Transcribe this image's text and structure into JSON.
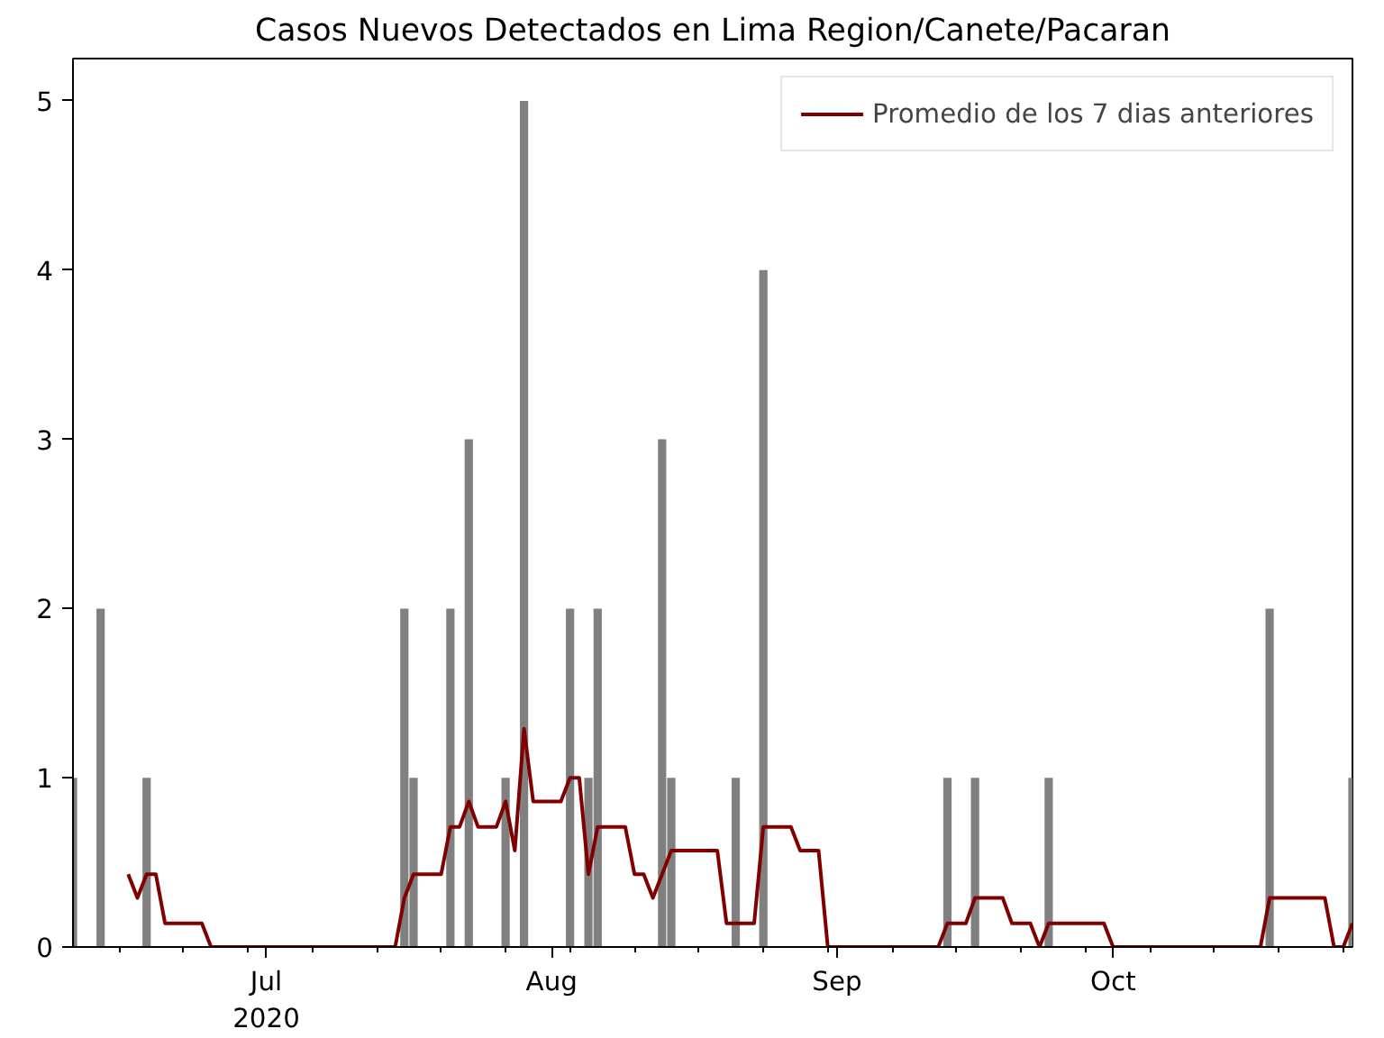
{
  "chart_data": {
    "type": "bar",
    "title": "Casos Nuevos Detectados en Lima Region/Canete/Pacaran",
    "x": [
      "2020-06-10",
      "2020-06-13",
      "2020-06-18",
      "2020-07-16",
      "2020-07-17",
      "2020-07-21",
      "2020-07-23",
      "2020-07-27",
      "2020-07-29",
      "2020-08-03",
      "2020-08-05",
      "2020-08-06",
      "2020-08-13",
      "2020-08-14",
      "2020-08-21",
      "2020-08-24",
      "2020-09-13",
      "2020-09-16",
      "2020-09-24",
      "2020-10-18",
      "2020-10-27"
    ],
    "series": [
      {
        "color": "#808080",
        "values": [
          1,
          2,
          1,
          2,
          1,
          2,
          3,
          1,
          5,
          2,
          1,
          2,
          3,
          1,
          1,
          4,
          1,
          1,
          1,
          2,
          1
        ]
      },
      {
        "type": "line",
        "name": "Promedio de los 7 dias anteriores",
        "color": "#800000",
        "x": [
          "2020-06-16",
          "2020-06-17",
          "2020-06-18",
          "2020-06-19",
          "2020-06-20",
          "2020-06-24",
          "2020-06-25",
          "2020-07-15",
          "2020-07-16",
          "2020-07-17",
          "2020-07-20",
          "2020-07-21",
          "2020-07-22",
          "2020-07-23",
          "2020-07-24",
          "2020-07-26",
          "2020-07-27",
          "2020-07-28",
          "2020-07-29",
          "2020-07-30",
          "2020-08-02",
          "2020-08-03",
          "2020-08-04",
          "2020-08-05",
          "2020-08-06",
          "2020-08-09",
          "2020-08-10",
          "2020-08-11",
          "2020-08-12",
          "2020-08-13",
          "2020-08-14",
          "2020-08-19",
          "2020-08-20",
          "2020-08-23",
          "2020-08-24",
          "2020-08-27",
          "2020-08-28",
          "2020-08-30",
          "2020-08-31",
          "2020-09-12",
          "2020-09-13",
          "2020-09-15",
          "2020-09-16",
          "2020-09-19",
          "2020-09-20",
          "2020-09-22",
          "2020-09-23",
          "2020-09-24",
          "2020-09-30",
          "2020-10-01",
          "2020-10-17",
          "2020-10-18",
          "2020-10-24",
          "2020-10-25",
          "2020-10-26",
          "2020-10-27"
        ],
        "values": [
          0.43,
          0.29,
          0.43,
          0.43,
          0.14,
          0.14,
          0,
          0,
          0.29,
          0.43,
          0.43,
          0.71,
          0.71,
          0.86,
          0.71,
          0.71,
          0.86,
          0.57,
          1.29,
          0.86,
          0.86,
          1.0,
          1.0,
          0.43,
          0.71,
          0.71,
          0.43,
          0.43,
          0.29,
          0.43,
          0.57,
          0.57,
          0.14,
          0.14,
          0.71,
          0.71,
          0.57,
          0.57,
          0,
          0,
          0.14,
          0.14,
          0.29,
          0.29,
          0.14,
          0.14,
          0,
          0.14,
          0.14,
          0,
          0,
          0.29,
          0.29,
          0,
          0,
          0.14
        ]
      }
    ],
    "xlim": [
      "2020-06-10",
      "2020-10-27"
    ],
    "xticks": [
      {
        "value": "2020-06-15",
        "label": null
      },
      {
        "value": "2020-06-22",
        "label": null
      },
      {
        "value": "2020-06-29",
        "label": null
      },
      {
        "value": "2020-07-01",
        "label": "Jul\n2020"
      },
      {
        "value": "2020-07-06",
        "label": null
      },
      {
        "value": "2020-07-13",
        "label": null
      },
      {
        "value": "2020-07-20",
        "label": null
      },
      {
        "value": "2020-07-27",
        "label": null
      },
      {
        "value": "2020-08-01",
        "label": "Aug"
      },
      {
        "value": "2020-08-03",
        "label": null
      },
      {
        "value": "2020-08-10",
        "label": null
      },
      {
        "value": "2020-08-17",
        "label": null
      },
      {
        "value": "2020-08-24",
        "label": null
      },
      {
        "value": "2020-08-31",
        "label": null
      },
      {
        "value": "2020-09-01",
        "label": "Sep"
      },
      {
        "value": "2020-09-07",
        "label": null
      },
      {
        "value": "2020-09-14",
        "label": null
      },
      {
        "value": "2020-09-21",
        "label": null
      },
      {
        "value": "2020-09-28",
        "label": null
      },
      {
        "value": "2020-10-01",
        "label": "Oct"
      },
      {
        "value": "2020-10-05",
        "label": null
      },
      {
        "value": "2020-10-12",
        "label": null
      },
      {
        "value": "2020-10-19",
        "label": null
      },
      {
        "value": "2020-10-26",
        "label": null
      }
    ],
    "ylim": [
      0,
      5.25
    ],
    "yticks": [
      0,
      1,
      2,
      3,
      4,
      5
    ],
    "grid": false,
    "legend": "top right"
  }
}
